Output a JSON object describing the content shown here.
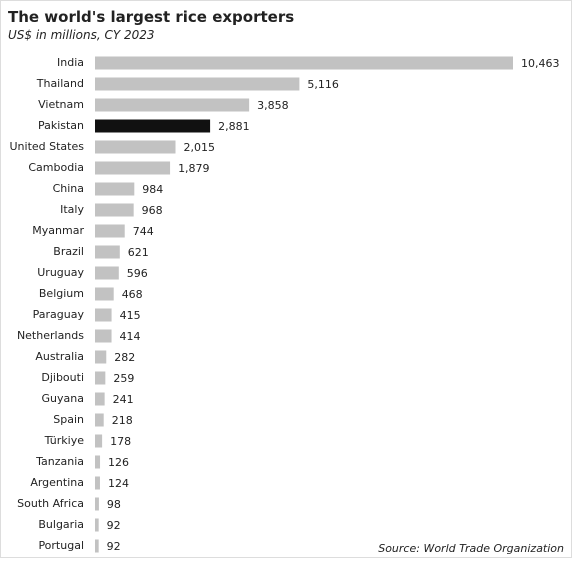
{
  "chart_data": {
    "type": "bar",
    "orientation": "horizontal",
    "title": "The world's largest rice exporters",
    "subtitle": "US$ in millions, CY 2023",
    "source": "Source: World Trade Organization",
    "categories": [
      "India",
      "Thailand",
      "Vietnam",
      "Pakistan",
      "United States",
      "Cambodia",
      "China",
      "Italy",
      "Myanmar",
      "Brazil",
      "Uruguay",
      "Belgium",
      "Paraguay",
      "Netherlands",
      "Australia",
      "Djibouti",
      "Guyana",
      "Spain",
      "Türkiye",
      "Tanzania",
      "Argentina",
      "South Africa",
      "Bulgaria",
      "Portugal"
    ],
    "values": [
      10463,
      5116,
      3858,
      2881,
      2015,
      1879,
      984,
      968,
      744,
      621,
      596,
      468,
      415,
      414,
      282,
      259,
      241,
      218,
      178,
      126,
      124,
      98,
      92,
      92
    ],
    "value_labels": [
      "10,463",
      "5,116",
      "3,858",
      "2,881",
      "2,015",
      "1,879",
      "984",
      "968",
      "744",
      "621",
      "596",
      "468",
      "415",
      "414",
      "282",
      "259",
      "241",
      "218",
      "178",
      "126",
      "124",
      "98",
      "92",
      "92"
    ],
    "colors": [
      "#c2c2c2",
      "#c2c2c2",
      "#c2c2c2",
      "#111111",
      "#c2c2c2",
      "#c2c2c2",
      "#c2c2c2",
      "#c2c2c2",
      "#c2c2c2",
      "#c2c2c2",
      "#c2c2c2",
      "#c2c2c2",
      "#c2c2c2",
      "#c2c2c2",
      "#c2c2c2",
      "#c2c2c2",
      "#c2c2c2",
      "#c2c2c2",
      "#c2c2c2",
      "#c2c2c2",
      "#c2c2c2",
      "#c2c2c2",
      "#c2c2c2",
      "#c2c2c2"
    ]
  }
}
